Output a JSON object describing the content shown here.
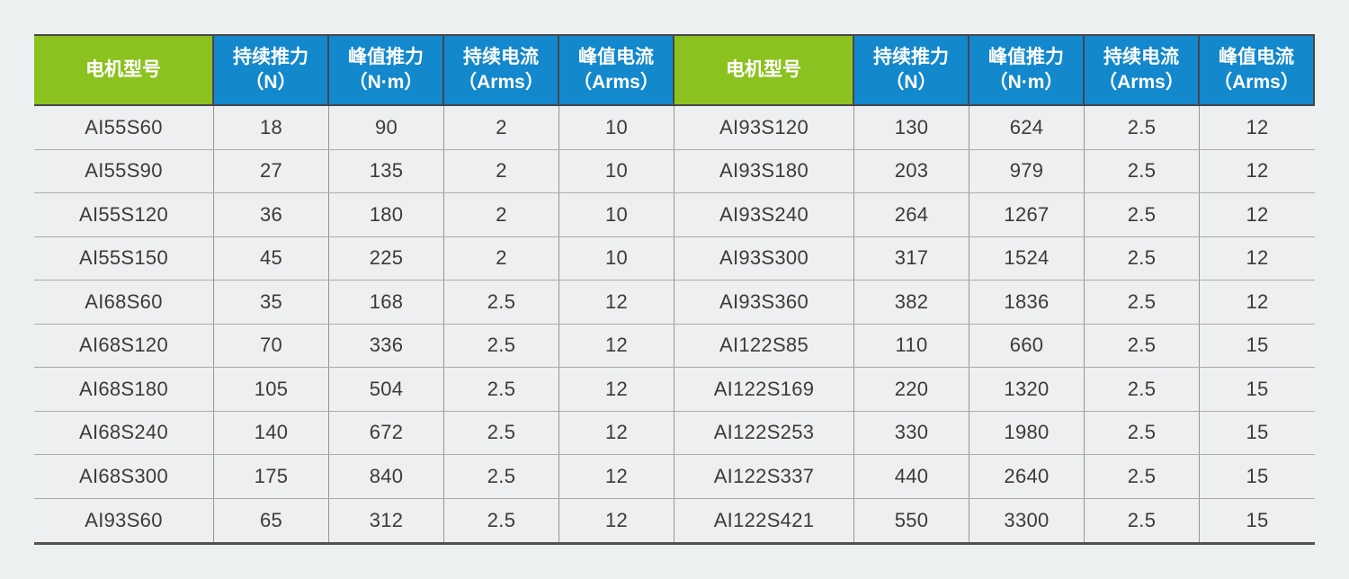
{
  "page": {
    "background": "#edf0f1"
  },
  "colors": {
    "header_green": "#8cc220",
    "header_blue": "#1388cc",
    "header_text": "#ffffff",
    "body_text": "#3e3a39",
    "border_dark": "#47464a",
    "border_bottom": "#55504e",
    "grid_line": "#969696",
    "row_line": "#ababab",
    "cell_bg": "#edeff0"
  },
  "table": {
    "columns": [
      {
        "key": "model",
        "label": "电机型号",
        "unit": ""
      },
      {
        "key": "cont-thrust",
        "label": "持续推力",
        "unit": "（N）"
      },
      {
        "key": "peak-thrust",
        "label": "峰值推力",
        "unit": "（N·m）"
      },
      {
        "key": "cont-current",
        "label": "持续电流",
        "unit": "（Arms）"
      },
      {
        "key": "peak-current",
        "label": "峰值电流",
        "unit": "（Arms）"
      }
    ],
    "halves": [
      {
        "side": "left",
        "rows": [
          {
            "model": "AI55S60",
            "values": [
              "18",
              "90",
              "2",
              "10"
            ]
          },
          {
            "model": "AI55S90",
            "values": [
              "27",
              "135",
              "2",
              "10"
            ]
          },
          {
            "model": "AI55S120",
            "values": [
              "36",
              "180",
              "2",
              "10"
            ]
          },
          {
            "model": "AI55S150",
            "values": [
              "45",
              "225",
              "2",
              "10"
            ]
          },
          {
            "model": "AI68S60",
            "values": [
              "35",
              "168",
              "2.5",
              "12"
            ]
          },
          {
            "model": "AI68S120",
            "values": [
              "70",
              "336",
              "2.5",
              "12"
            ]
          },
          {
            "model": "AI68S180",
            "values": [
              "105",
              "504",
              "2.5",
              "12"
            ]
          },
          {
            "model": "AI68S240",
            "values": [
              "140",
              "672",
              "2.5",
              "12"
            ]
          },
          {
            "model": "AI68S300",
            "values": [
              "175",
              "840",
              "2.5",
              "12"
            ]
          },
          {
            "model": "AI93S60",
            "values": [
              "65",
              "312",
              "2.5",
              "12"
            ]
          }
        ]
      },
      {
        "side": "right",
        "rows": [
          {
            "model": "AI93S120",
            "values": [
              "130",
              "624",
              "2.5",
              "12"
            ]
          },
          {
            "model": "AI93S180",
            "values": [
              "203",
              "979",
              "2.5",
              "12"
            ]
          },
          {
            "model": "AI93S240",
            "values": [
              "264",
              "1267",
              "2.5",
              "12"
            ]
          },
          {
            "model": "AI93S300",
            "values": [
              "317",
              "1524",
              "2.5",
              "12"
            ]
          },
          {
            "model": "AI93S360",
            "values": [
              "382",
              "1836",
              "2.5",
              "12"
            ]
          },
          {
            "model": "AI122S85",
            "values": [
              "110",
              "660",
              "2.5",
              "15"
            ]
          },
          {
            "model": "AI122S169",
            "values": [
              "220",
              "1320",
              "2.5",
              "15"
            ]
          },
          {
            "model": "AI122S253",
            "values": [
              "330",
              "1980",
              "2.5",
              "15"
            ]
          },
          {
            "model": "AI122S337",
            "values": [
              "440",
              "2640",
              "2.5",
              "15"
            ]
          },
          {
            "model": "AI122S421",
            "values": [
              "550",
              "3300",
              "2.5",
              "15"
            ]
          }
        ]
      }
    ]
  }
}
